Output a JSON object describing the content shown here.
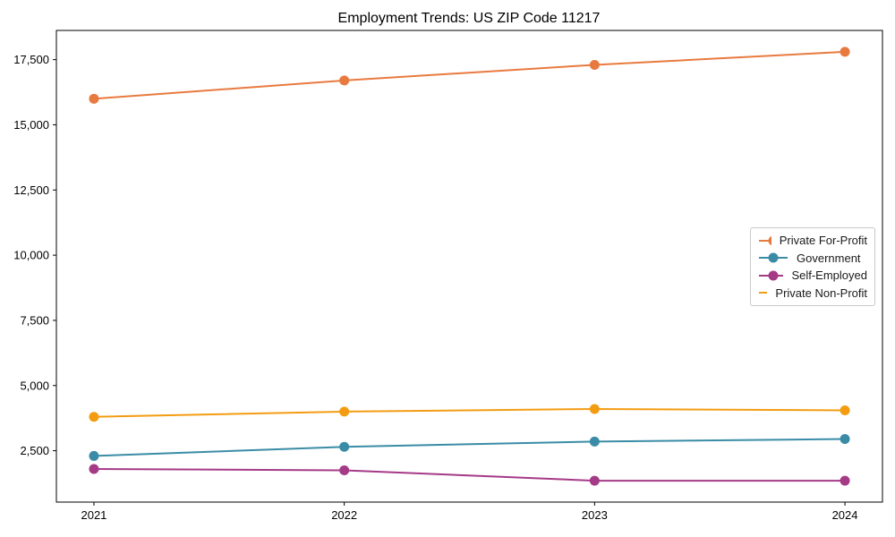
{
  "page": {
    "background": "#ffffff",
    "axis_color": "#000000",
    "legend_border_color": "#c9c9c9"
  },
  "chart_data": {
    "type": "line",
    "title": "Employment Trends: US ZIP Code 11217",
    "xlabel": "",
    "ylabel": "",
    "x": [
      2021,
      2022,
      2023,
      2024
    ],
    "x_tick_labels": [
      "2021",
      "2022",
      "2023",
      "2024"
    ],
    "y_ticks": [
      2500,
      5000,
      7500,
      10000,
      12500,
      15000,
      17500
    ],
    "y_tick_labels": [
      "2,500",
      "5,000",
      "7,500",
      "10,000",
      "12,500",
      "15,000",
      "17,500"
    ],
    "xlim": [
      2020.85,
      2024.15
    ],
    "ylim": [
      530,
      18620
    ],
    "grid": false,
    "legend_position": "center right",
    "marker": "circle",
    "series": [
      {
        "name": "Private For-Profit",
        "color": "#e87a3f",
        "values": [
          16000,
          16700,
          17300,
          17800
        ]
      },
      {
        "name": "Government",
        "color": "#3a8ca6",
        "values": [
          2300,
          2650,
          2850,
          2950
        ]
      },
      {
        "name": "Self-Employed",
        "color": "#a53a87",
        "values": [
          1800,
          1750,
          1350,
          1350
        ]
      },
      {
        "name": "Private Non-Profit",
        "color": "#f39c12",
        "values": [
          3800,
          4000,
          4100,
          4050
        ]
      }
    ]
  }
}
